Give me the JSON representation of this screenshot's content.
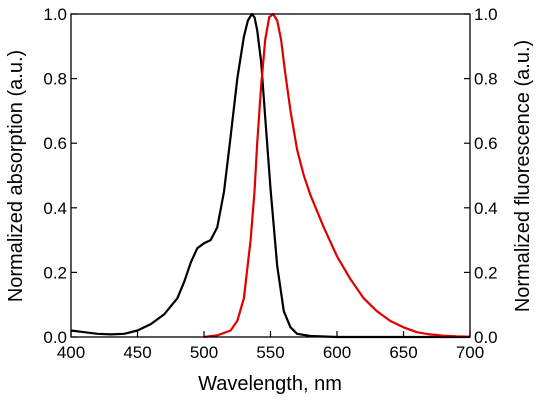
{
  "chart_data": {
    "type": "line",
    "title": "",
    "xlabel": "Wavelength, nm",
    "ylabel_left": "Normalized absorption (a.u.)",
    "ylabel_right": "Normalized fluorescence (a.u.)",
    "xlim": [
      400,
      700
    ],
    "ylim": [
      0,
      1.0
    ],
    "x_ticks": [
      400,
      450,
      500,
      550,
      600,
      650,
      700
    ],
    "y_ticks": [
      0.0,
      0.2,
      0.4,
      0.6,
      0.8,
      1.0
    ],
    "x_tick_labels": [
      "400",
      "450",
      "500",
      "550",
      "600",
      "650",
      "700"
    ],
    "y_tick_labels": [
      "0.0",
      "0.2",
      "0.4",
      "0.6",
      "0.8",
      "1.0"
    ],
    "grid": false,
    "legend": "none",
    "series": [
      {
        "color": "#000000",
        "axis": "left",
        "x": [
          400,
          410,
          420,
          430,
          440,
          450,
          460,
          470,
          480,
          485,
          490,
          495,
          500,
          505,
          510,
          515,
          520,
          525,
          530,
          533,
          536,
          538,
          540,
          543,
          546,
          550,
          555,
          560,
          565,
          570,
          580,
          600,
          650,
          700
        ],
        "y": [
          0.02,
          0.015,
          0.01,
          0.008,
          0.01,
          0.02,
          0.04,
          0.07,
          0.12,
          0.17,
          0.23,
          0.275,
          0.29,
          0.3,
          0.34,
          0.45,
          0.62,
          0.8,
          0.93,
          0.98,
          1.0,
          0.99,
          0.95,
          0.85,
          0.68,
          0.46,
          0.22,
          0.08,
          0.03,
          0.01,
          0.003,
          0.0,
          0.0,
          0.0
        ]
      },
      {
        "color": "#e00000",
        "axis": "right",
        "x": [
          500,
          510,
          520,
          525,
          530,
          535,
          538,
          540,
          543,
          546,
          549,
          552,
          555,
          558,
          561,
          565,
          570,
          575,
          580,
          590,
          600,
          610,
          620,
          630,
          640,
          650,
          660,
          670,
          680,
          690,
          700
        ],
        "y": [
          0.0,
          0.005,
          0.02,
          0.05,
          0.12,
          0.3,
          0.45,
          0.6,
          0.78,
          0.92,
          0.99,
          1.0,
          0.98,
          0.92,
          0.82,
          0.7,
          0.58,
          0.5,
          0.44,
          0.34,
          0.25,
          0.18,
          0.12,
          0.08,
          0.05,
          0.03,
          0.015,
          0.008,
          0.004,
          0.002,
          0.001
        ]
      }
    ]
  }
}
